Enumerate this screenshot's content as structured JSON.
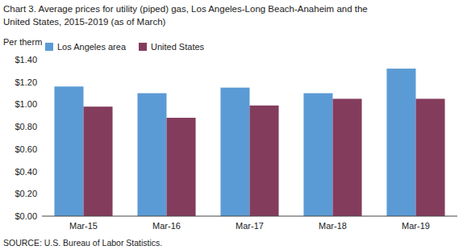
{
  "chart_data": {
    "type": "bar",
    "title": [
      "Chart 3. Average prices for utility (piped) gas, Los Angeles-Long Beach-Anaheim and the",
      "United States, 2015-2019  (as of March)"
    ],
    "ylabel": "Per therm",
    "source": "SOURCE: U.S. Bureau of Labor Statistics.",
    "categories": [
      "Mar-15",
      "Mar-16",
      "Mar-17",
      "Mar-18",
      "Mar-19"
    ],
    "series": [
      {
        "name": "Los Angeles area",
        "color": "#5B9BD5",
        "values": [
          1.16,
          1.1,
          1.15,
          1.1,
          1.32
        ]
      },
      {
        "name": "United States",
        "color": "#843C5C",
        "values": [
          0.98,
          0.88,
          0.99,
          1.05,
          1.05
        ]
      }
    ],
    "ylim": [
      0,
      1.4
    ],
    "yticks": [
      {
        "value": 0,
        "label": "$0.00"
      },
      {
        "value": 0.2,
        "label": "$0.20"
      },
      {
        "value": 0.4,
        "label": "$0.40"
      },
      {
        "value": 0.6,
        "label": "$0.60"
      },
      {
        "value": 0.8,
        "label": "$0.80"
      },
      {
        "value": 1.0,
        "label": "$1.00"
      },
      {
        "value": 1.2,
        "label": "$1.20"
      },
      {
        "value": 1.4,
        "label": "$1.40"
      }
    ],
    "grid": false,
    "legend": "upper left"
  }
}
